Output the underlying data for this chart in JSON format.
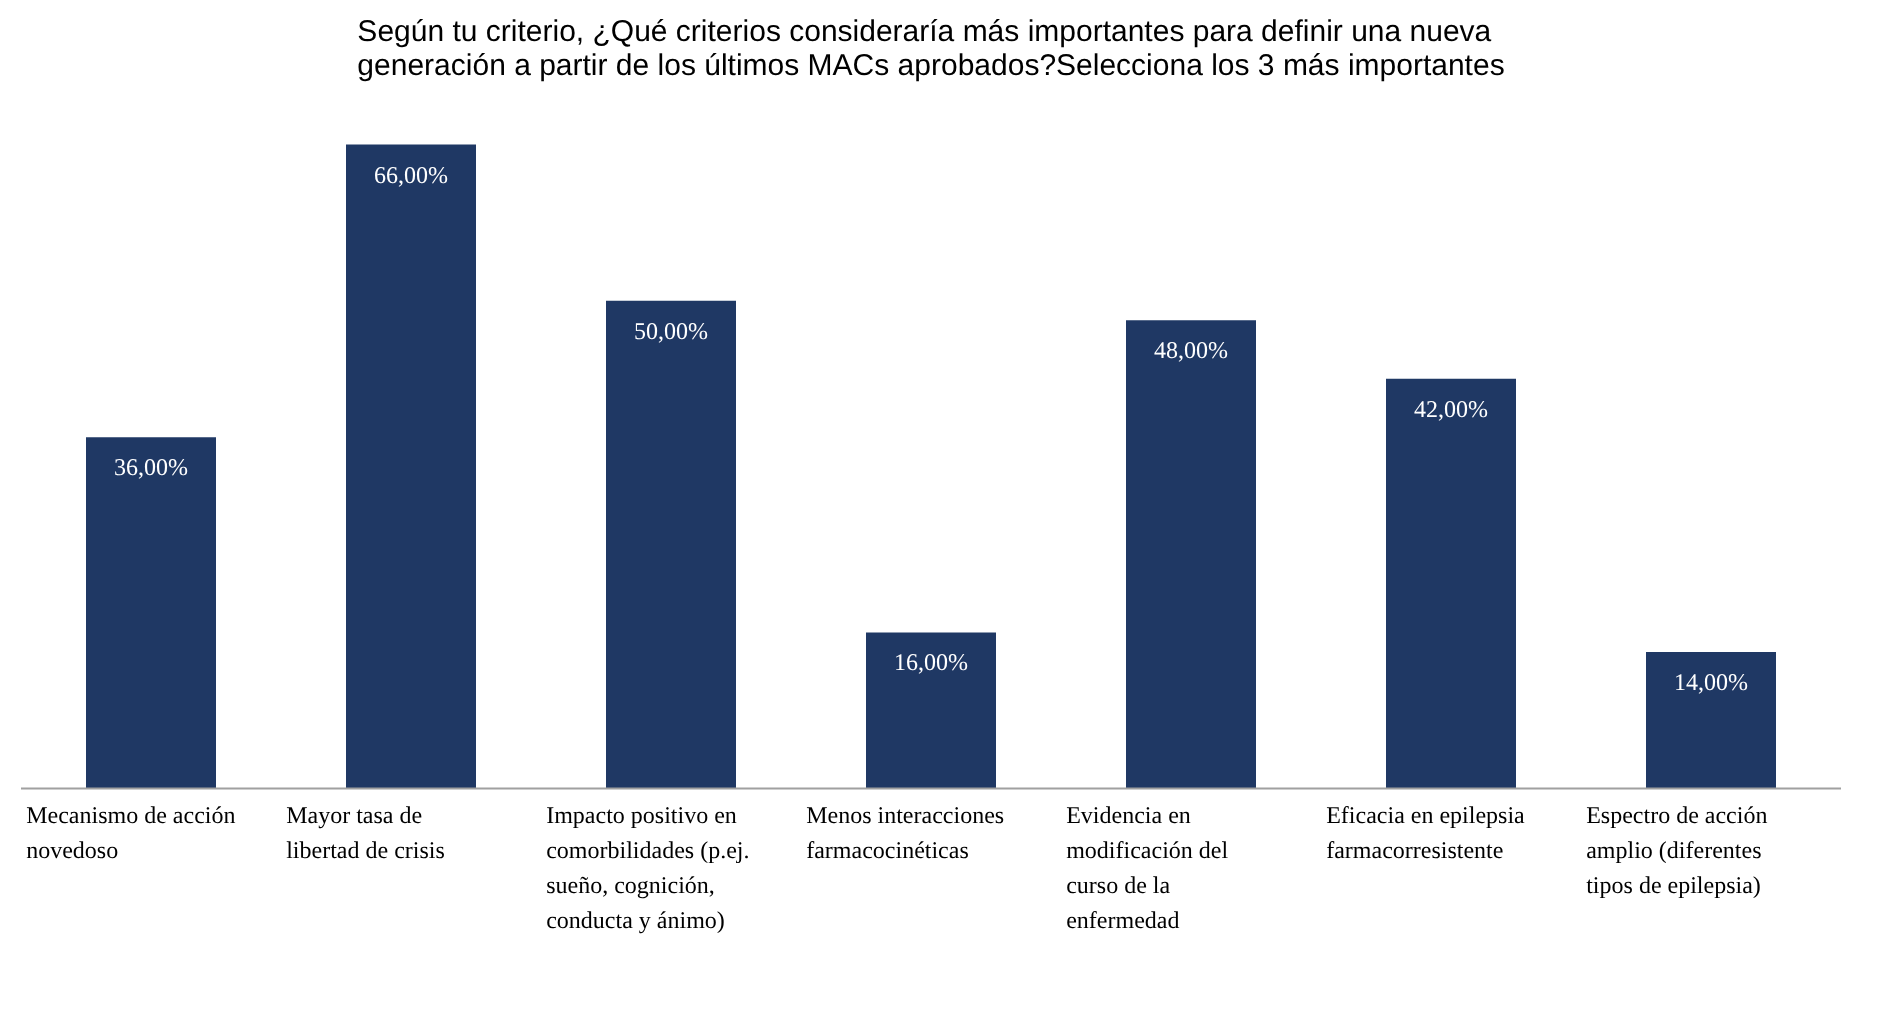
{
  "chart_data": {
    "type": "bar",
    "title": "Según tu criterio, ¿Qué criterios consideraría más importantes para definir una nueva\ngeneración a partir de los últimos MACs aprobados?Selecciona los 3 más importantes",
    "categories": [
      "Mecanismo de acción\nnovedoso",
      "Mayor tasa de\nlibertad de crisis",
      "Impacto positivo en\ncomorbilidades (p.ej.\nsueño, cognición,\nconducta y ánimo)",
      "Menos interacciones\nfarmacocinéticas",
      "Evidencia en\nmodificación del\ncurso de la\nenfermedad",
      "Eficacia en epilepsia\nfarmacorresistente",
      "Espectro de acción\namplio (diferentes\ntipos de epilepsia)"
    ],
    "values": [
      36,
      66,
      50,
      16,
      48,
      42,
      14
    ],
    "value_labels": [
      "36,00%",
      "66,00%",
      "50,00%",
      "16,00%",
      "48,00%",
      "42,00%",
      "14,00%"
    ],
    "color": "#1f3864",
    "grid": false
  }
}
